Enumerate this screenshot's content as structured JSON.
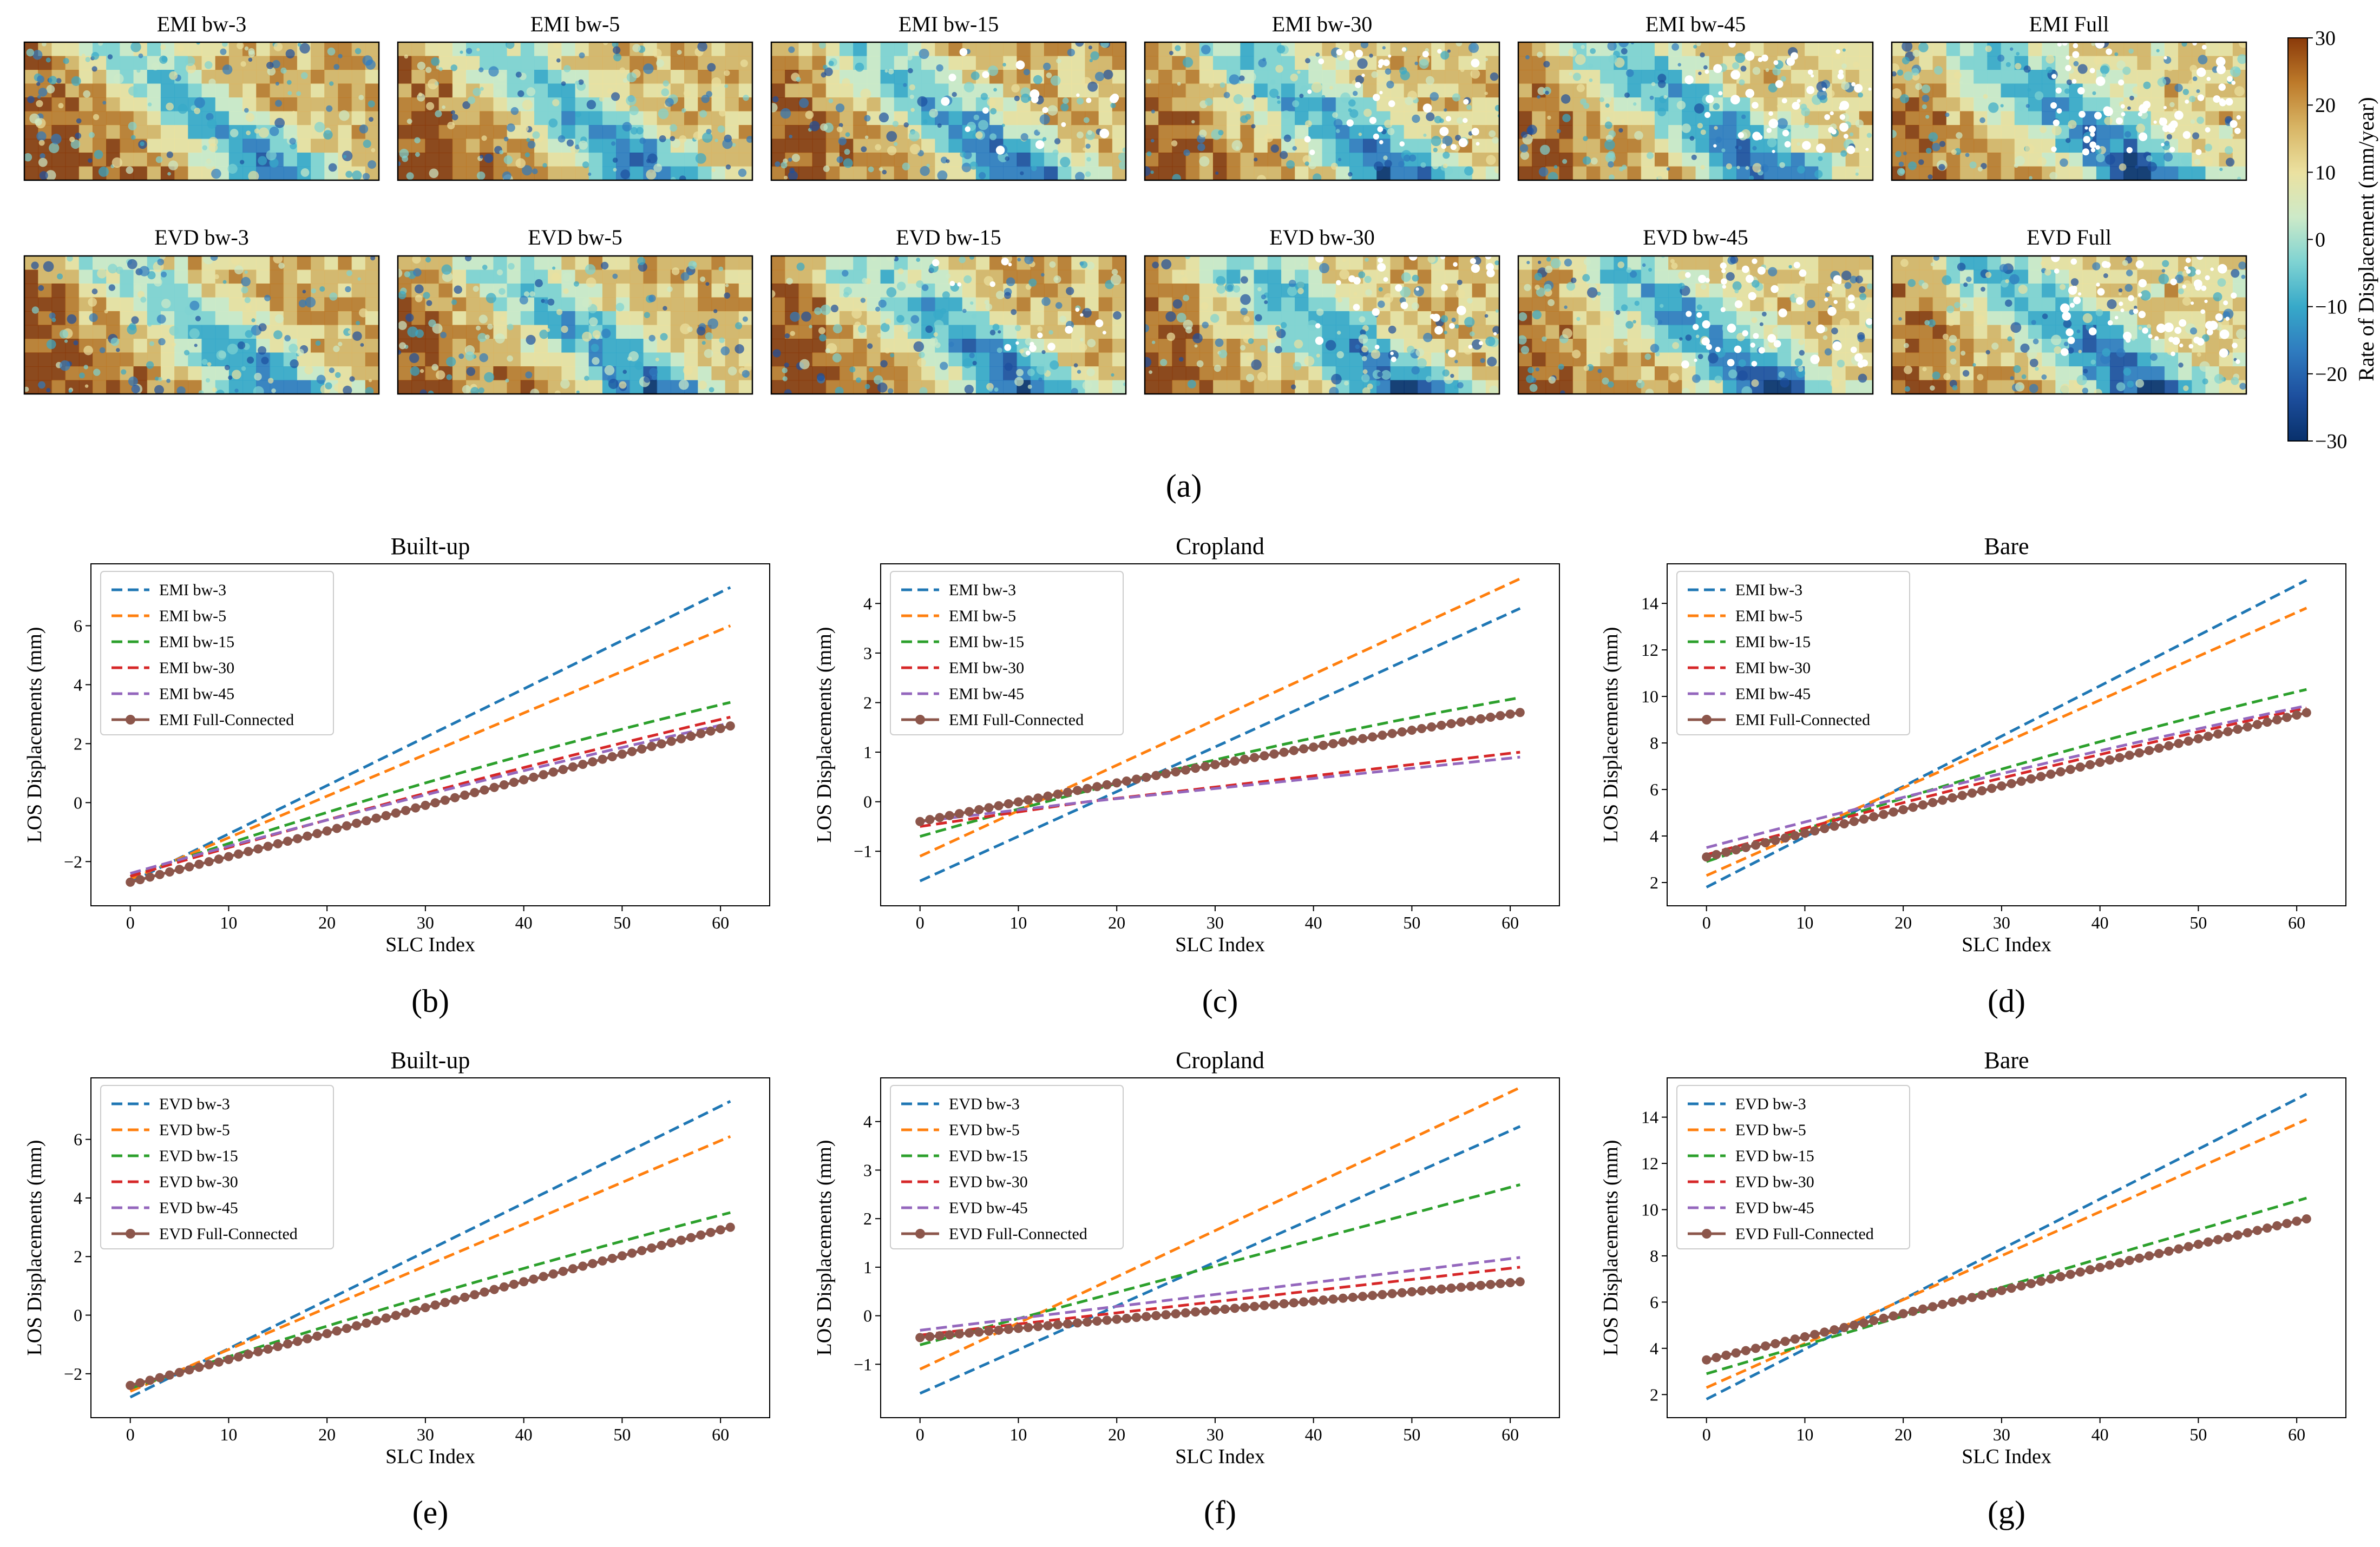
{
  "maps": {
    "row1_titles": [
      "EMI bw-3",
      "EMI bw-5",
      "EMI bw-15",
      "EMI bw-30",
      "EMI bw-45",
      "EMI Full"
    ],
    "row2_titles": [
      "EVD bw-3",
      "EVD bw-5",
      "EVD bw-15",
      "EVD bw-30",
      "EVD bw-45",
      "EVD Full"
    ],
    "colorbar": {
      "label": "Rate of Displacement (mm/year)",
      "ticks": [
        "30",
        "20",
        "10",
        "0",
        "−10",
        "−20",
        "−30"
      ],
      "range": [
        -30,
        30
      ],
      "colors": [
        "#08306b",
        "#1d4f9e",
        "#2f7bbf",
        "#37a9c9",
        "#7fd3d2",
        "#cdeac8",
        "#ebe1a0",
        "#d8b565",
        "#bd7a2a",
        "#8a3a0a"
      ]
    },
    "panel_label": "(a)"
  },
  "colors": {
    "bw3": "#1f77b4",
    "bw5": "#ff7f0e",
    "bw15": "#2ca02c",
    "bw30": "#d62728",
    "bw45": "#9467bd",
    "full": "#8c564b"
  },
  "chart_data": [
    {
      "panel_label": "(b)",
      "type": "line",
      "title": "Built-up",
      "xlabel": "SLC Index",
      "ylabel": "LOS Displacements (mm)",
      "xlim": [
        -4,
        65
      ],
      "ylim": [
        -3.5,
        8.1
      ],
      "xticks": [
        0,
        10,
        20,
        30,
        40,
        50,
        60
      ],
      "yticks": [
        -2,
        0,
        2,
        4,
        6
      ],
      "series": [
        {
          "name": "EMI bw-3",
          "key": "bw3",
          "start": -2.7,
          "end": 7.3
        },
        {
          "name": "EMI bw-5",
          "key": "bw5",
          "start": -2.6,
          "end": 6.0
        },
        {
          "name": "EMI bw-15",
          "key": "bw15",
          "start": -2.5,
          "end": 3.4,
          "curve": 0.15
        },
        {
          "name": "EMI bw-30",
          "key": "bw30",
          "start": -2.5,
          "end": 2.9,
          "curve": 0.1
        },
        {
          "name": "EMI bw-45",
          "key": "bw45",
          "start": -2.4,
          "end": 2.7,
          "curve": 0.1
        },
        {
          "name": "EMI Full-Connected",
          "key": "full",
          "start": -2.7,
          "end": 2.6,
          "markers": true
        }
      ]
    },
    {
      "panel_label": "(c)",
      "type": "line",
      "title": "Cropland",
      "xlabel": "SLC Index",
      "ylabel": "LOS Displacements (mm)",
      "xlim": [
        -4,
        65
      ],
      "ylim": [
        -2.1,
        4.8
      ],
      "xticks": [
        0,
        10,
        20,
        30,
        40,
        50,
        60
      ],
      "yticks": [
        -1,
        0,
        1,
        2,
        3,
        4
      ],
      "series": [
        {
          "name": "EMI bw-3",
          "key": "bw3",
          "start": -1.6,
          "end": 3.9
        },
        {
          "name": "EMI bw-5",
          "key": "bw5",
          "start": -1.1,
          "end": 4.5
        },
        {
          "name": "EMI bw-15",
          "key": "bw15",
          "start": -0.7,
          "end": 2.1,
          "curve": 0.2
        },
        {
          "name": "EMI bw-30",
          "key": "bw30",
          "start": -0.5,
          "end": 1.0,
          "curve": 0.1,
          "points": [
            [
              0,
              -0.5
            ],
            [
              17,
              0.0
            ],
            [
              61,
              1.0
            ]
          ]
        },
        {
          "name": "EMI bw-45",
          "key": "bw45",
          "start": -0.4,
          "end": 0.9,
          "points": [
            [
              0,
              -0.4
            ],
            [
              17,
              0.0
            ],
            [
              61,
              0.9
            ]
          ]
        },
        {
          "name": "EMI Full-Connected",
          "key": "full",
          "start": -0.4,
          "end": 1.8,
          "markers": true,
          "curve": 0.1
        }
      ]
    },
    {
      "panel_label": "(d)",
      "type": "line",
      "title": "Bare",
      "xlabel": "SLC Index",
      "ylabel": "LOS Displacements (mm)",
      "xlim": [
        -4,
        65
      ],
      "ylim": [
        1.0,
        15.7
      ],
      "xticks": [
        0,
        10,
        20,
        30,
        40,
        50,
        60
      ],
      "yticks": [
        2,
        4,
        6,
        8,
        10,
        12,
        14
      ],
      "series": [
        {
          "name": "EMI bw-3",
          "key": "bw3",
          "start": 1.8,
          "end": 15.0
        },
        {
          "name": "EMI bw-5",
          "key": "bw5",
          "start": 2.3,
          "end": 13.8
        },
        {
          "name": "EMI bw-15",
          "key": "bw15",
          "start": 2.9,
          "end": 10.3,
          "curve": 0.15
        },
        {
          "name": "EMI bw-30",
          "key": "bw30",
          "start": 3.2,
          "end": 9.5,
          "curve": 0.1
        },
        {
          "name": "EMI bw-45",
          "key": "bw45",
          "start": 3.5,
          "end": 9.6,
          "curve": 0.1
        },
        {
          "name": "EMI Full-Connected",
          "key": "full",
          "start": 3.1,
          "end": 9.3,
          "markers": true
        }
      ]
    },
    {
      "panel_label": "(e)",
      "type": "line",
      "title": "Built-up",
      "xlabel": "SLC Index",
      "ylabel": "LOS Displacements (mm)",
      "xlim": [
        -4,
        65
      ],
      "ylim": [
        -3.5,
        8.1
      ],
      "xticks": [
        0,
        10,
        20,
        30,
        40,
        50,
        60
      ],
      "yticks": [
        -2,
        0,
        2,
        4,
        6
      ],
      "series": [
        {
          "name": "EVD bw-3",
          "key": "bw3",
          "start": -2.8,
          "end": 7.3
        },
        {
          "name": "EVD bw-5",
          "key": "bw5",
          "start": -2.6,
          "end": 6.1
        },
        {
          "name": "EVD bw-15",
          "key": "bw15",
          "start": -2.5,
          "end": 3.5,
          "curve": 0.1
        },
        {
          "name": "EVD bw-30",
          "key": "bw30",
          "start": -2.4,
          "end": 3.0
        },
        {
          "name": "EVD bw-45",
          "key": "bw45",
          "start": -2.4,
          "end": 3.0
        },
        {
          "name": "EVD Full-Connected",
          "key": "full",
          "start": -2.4,
          "end": 3.0,
          "markers": true
        }
      ]
    },
    {
      "panel_label": "(f)",
      "type": "line",
      "title": "Cropland",
      "xlabel": "SLC Index",
      "ylabel": "LOS Displacements (mm)",
      "xlim": [
        -4,
        65
      ],
      "ylim": [
        -2.1,
        4.9
      ],
      "xticks": [
        0,
        10,
        20,
        30,
        40,
        50,
        60
      ],
      "yticks": [
        -1,
        0,
        1,
        2,
        3,
        4
      ],
      "series": [
        {
          "name": "EVD bw-3",
          "key": "bw3",
          "start": -1.6,
          "end": 3.9
        },
        {
          "name": "EVD bw-5",
          "key": "bw5",
          "start": -1.1,
          "end": 4.7
        },
        {
          "name": "EVD bw-15",
          "key": "bw15",
          "start": -0.6,
          "end": 2.7
        },
        {
          "name": "EVD bw-30",
          "key": "bw30",
          "start": -0.4,
          "end": 1.0
        },
        {
          "name": "EVD bw-45",
          "key": "bw45",
          "start": -0.3,
          "end": 1.2
        },
        {
          "name": "EVD Full-Connected",
          "key": "full",
          "start": -0.45,
          "end": 0.7,
          "markers": true
        }
      ]
    },
    {
      "panel_label": "(g)",
      "type": "line",
      "title": "Bare",
      "xlabel": "SLC Index",
      "ylabel": "LOS Displacements (mm)",
      "xlim": [
        -4,
        65
      ],
      "ylim": [
        1.0,
        15.7
      ],
      "xticks": [
        0,
        10,
        20,
        30,
        40,
        50,
        60
      ],
      "yticks": [
        2,
        4,
        6,
        8,
        10,
        12,
        14
      ],
      "series": [
        {
          "name": "EVD bw-3",
          "key": "bw3",
          "start": 1.8,
          "end": 15.0
        },
        {
          "name": "EVD bw-5",
          "key": "bw5",
          "start": 2.3,
          "end": 13.9
        },
        {
          "name": "EVD bw-15",
          "key": "bw15",
          "start": 2.9,
          "end": 10.5
        },
        {
          "name": "EVD bw-30",
          "key": "bw30",
          "start": 3.5,
          "end": 9.6
        },
        {
          "name": "EVD bw-45",
          "key": "bw45",
          "start": 3.5,
          "end": 9.6
        },
        {
          "name": "EVD Full-Connected",
          "key": "full",
          "start": 3.5,
          "end": 9.6,
          "markers": true
        }
      ]
    }
  ]
}
